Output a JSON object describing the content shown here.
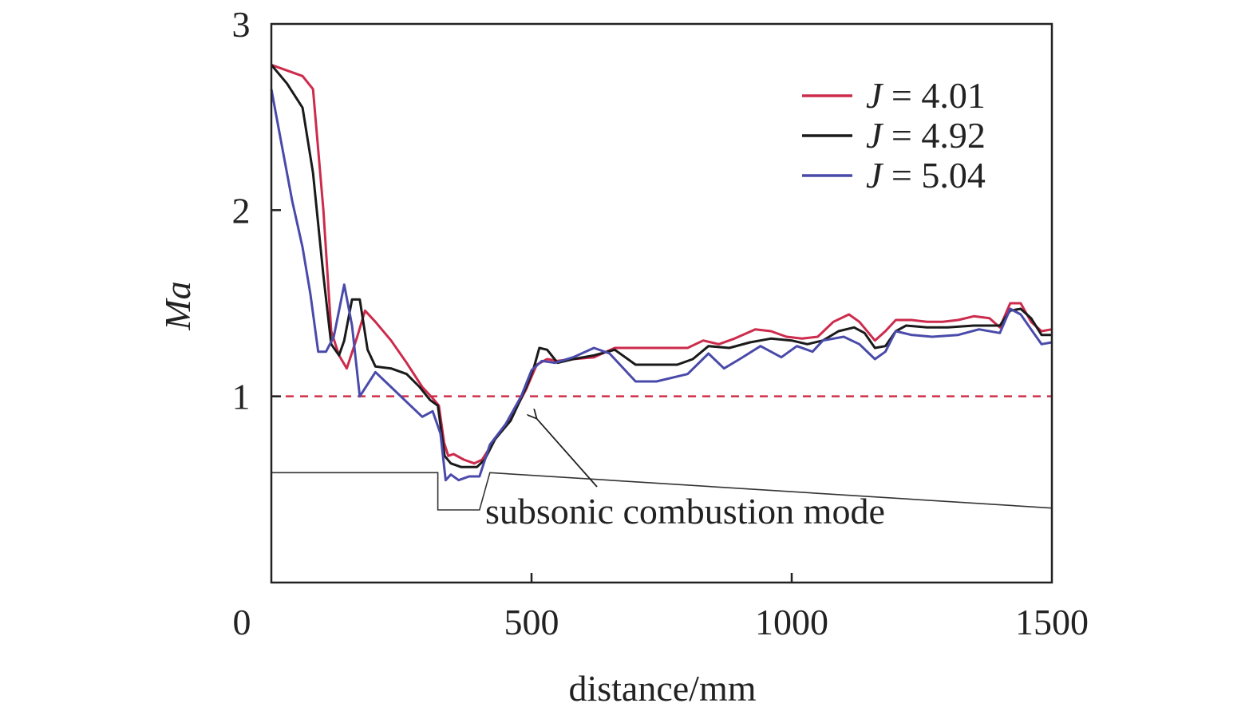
{
  "chart_data": {
    "type": "line",
    "xlabel": "distance/mm",
    "ylabel": "Ma",
    "xlim": [
      0,
      1500
    ],
    "ylim": [
      0,
      3
    ],
    "xticks": [
      "0",
      "500",
      "1000",
      "1500"
    ],
    "xtick_values": [
      0,
      500,
      1000,
      1500
    ],
    "yticks": [
      "1",
      "2",
      "3"
    ],
    "ytick_values": [
      1,
      2,
      3
    ],
    "grid": false,
    "legend_position": "top-right",
    "reference_line": {
      "y": 1.0,
      "style": "dashed",
      "color": "#d0304a"
    },
    "annotation": {
      "text": "subsonic combustion mode",
      "target": [
        510,
        0.88
      ]
    },
    "geometry_profile": {
      "color": "#333333",
      "points": [
        [
          0,
          0.59
        ],
        [
          320,
          0.59
        ],
        [
          320,
          0.39
        ],
        [
          400,
          0.39
        ],
        [
          420,
          0.59
        ],
        [
          1500,
          0.4
        ]
      ]
    },
    "series": [
      {
        "name": "J = 4.01",
        "prefix": "J",
        "suffix": " = 4.01",
        "color": "#cc2b4c",
        "points": [
          [
            0,
            2.78
          ],
          [
            60,
            2.72
          ],
          [
            80,
            2.65
          ],
          [
            100,
            2.0
          ],
          [
            115,
            1.35
          ],
          [
            130,
            1.22
          ],
          [
            145,
            1.15
          ],
          [
            165,
            1.32
          ],
          [
            180,
            1.46
          ],
          [
            200,
            1.4
          ],
          [
            230,
            1.3
          ],
          [
            260,
            1.18
          ],
          [
            290,
            1.05
          ],
          [
            310,
            0.99
          ],
          [
            322,
            0.95
          ],
          [
            332,
            0.75
          ],
          [
            340,
            0.68
          ],
          [
            350,
            0.69
          ],
          [
            370,
            0.66
          ],
          [
            390,
            0.64
          ],
          [
            405,
            0.66
          ],
          [
            430,
            0.77
          ],
          [
            460,
            0.88
          ],
          [
            490,
            1.04
          ],
          [
            510,
            1.17
          ],
          [
            530,
            1.2
          ],
          [
            550,
            1.19
          ],
          [
            580,
            1.2
          ],
          [
            620,
            1.21
          ],
          [
            660,
            1.26
          ],
          [
            700,
            1.26
          ],
          [
            740,
            1.26
          ],
          [
            800,
            1.26
          ],
          [
            830,
            1.3
          ],
          [
            860,
            1.28
          ],
          [
            890,
            1.31
          ],
          [
            930,
            1.36
          ],
          [
            960,
            1.35
          ],
          [
            990,
            1.32
          ],
          [
            1020,
            1.31
          ],
          [
            1050,
            1.32
          ],
          [
            1080,
            1.4
          ],
          [
            1110,
            1.44
          ],
          [
            1130,
            1.4
          ],
          [
            1160,
            1.3
          ],
          [
            1180,
            1.35
          ],
          [
            1200,
            1.41
          ],
          [
            1230,
            1.41
          ],
          [
            1260,
            1.4
          ],
          [
            1290,
            1.4
          ],
          [
            1320,
            1.41
          ],
          [
            1350,
            1.43
          ],
          [
            1380,
            1.42
          ],
          [
            1400,
            1.37
          ],
          [
            1420,
            1.5
          ],
          [
            1440,
            1.5
          ],
          [
            1460,
            1.4
          ],
          [
            1480,
            1.35
          ],
          [
            1500,
            1.36
          ]
        ]
      },
      {
        "name": "J = 4.92",
        "prefix": "J",
        "suffix": " = 4.92",
        "color": "#1a1a1a",
        "points": [
          [
            0,
            2.78
          ],
          [
            30,
            2.68
          ],
          [
            60,
            2.55
          ],
          [
            80,
            2.2
          ],
          [
            100,
            1.65
          ],
          [
            115,
            1.28
          ],
          [
            130,
            1.22
          ],
          [
            140,
            1.3
          ],
          [
            155,
            1.52
          ],
          [
            170,
            1.52
          ],
          [
            185,
            1.25
          ],
          [
            200,
            1.16
          ],
          [
            230,
            1.15
          ],
          [
            260,
            1.12
          ],
          [
            285,
            1.05
          ],
          [
            305,
            0.98
          ],
          [
            320,
            0.95
          ],
          [
            333,
            0.68
          ],
          [
            345,
            0.64
          ],
          [
            365,
            0.62
          ],
          [
            395,
            0.62
          ],
          [
            410,
            0.66
          ],
          [
            430,
            0.77
          ],
          [
            460,
            0.87
          ],
          [
            490,
            1.05
          ],
          [
            505,
            1.16
          ],
          [
            515,
            1.26
          ],
          [
            530,
            1.25
          ],
          [
            550,
            1.18
          ],
          [
            580,
            1.2
          ],
          [
            620,
            1.22
          ],
          [
            660,
            1.25
          ],
          [
            700,
            1.17
          ],
          [
            740,
            1.17
          ],
          [
            780,
            1.17
          ],
          [
            810,
            1.2
          ],
          [
            840,
            1.27
          ],
          [
            880,
            1.26
          ],
          [
            920,
            1.29
          ],
          [
            960,
            1.31
          ],
          [
            1000,
            1.3
          ],
          [
            1030,
            1.28
          ],
          [
            1060,
            1.3
          ],
          [
            1090,
            1.35
          ],
          [
            1120,
            1.37
          ],
          [
            1140,
            1.34
          ],
          [
            1160,
            1.26
          ],
          [
            1180,
            1.27
          ],
          [
            1200,
            1.35
          ],
          [
            1220,
            1.38
          ],
          [
            1260,
            1.37
          ],
          [
            1300,
            1.37
          ],
          [
            1350,
            1.38
          ],
          [
            1400,
            1.38
          ],
          [
            1420,
            1.46
          ],
          [
            1440,
            1.47
          ],
          [
            1460,
            1.42
          ],
          [
            1480,
            1.33
          ],
          [
            1500,
            1.33
          ]
        ]
      },
      {
        "name": "J = 5.04",
        "prefix": "J",
        "suffix": " = 5.04",
        "color": "#4a4aaa",
        "points": [
          [
            0,
            2.65
          ],
          [
            20,
            2.35
          ],
          [
            40,
            2.05
          ],
          [
            60,
            1.8
          ],
          [
            75,
            1.55
          ],
          [
            90,
            1.24
          ],
          [
            105,
            1.24
          ],
          [
            120,
            1.32
          ],
          [
            140,
            1.6
          ],
          [
            155,
            1.38
          ],
          [
            170,
            1.0
          ],
          [
            200,
            1.13
          ],
          [
            230,
            1.05
          ],
          [
            260,
            0.97
          ],
          [
            290,
            0.89
          ],
          [
            310,
            0.92
          ],
          [
            325,
            0.8
          ],
          [
            335,
            0.55
          ],
          [
            345,
            0.58
          ],
          [
            360,
            0.55
          ],
          [
            380,
            0.57
          ],
          [
            400,
            0.57
          ],
          [
            420,
            0.74
          ],
          [
            450,
            0.85
          ],
          [
            480,
            1.0
          ],
          [
            500,
            1.14
          ],
          [
            520,
            1.19
          ],
          [
            545,
            1.18
          ],
          [
            580,
            1.21
          ],
          [
            620,
            1.26
          ],
          [
            650,
            1.23
          ],
          [
            700,
            1.08
          ],
          [
            740,
            1.08
          ],
          [
            800,
            1.12
          ],
          [
            840,
            1.23
          ],
          [
            870,
            1.15
          ],
          [
            900,
            1.2
          ],
          [
            940,
            1.27
          ],
          [
            980,
            1.21
          ],
          [
            1010,
            1.27
          ],
          [
            1040,
            1.24
          ],
          [
            1060,
            1.3
          ],
          [
            1100,
            1.32
          ],
          [
            1130,
            1.28
          ],
          [
            1160,
            1.2
          ],
          [
            1180,
            1.24
          ],
          [
            1200,
            1.35
          ],
          [
            1230,
            1.33
          ],
          [
            1270,
            1.32
          ],
          [
            1320,
            1.33
          ],
          [
            1360,
            1.36
          ],
          [
            1400,
            1.34
          ],
          [
            1420,
            1.47
          ],
          [
            1440,
            1.44
          ],
          [
            1460,
            1.36
          ],
          [
            1480,
            1.28
          ],
          [
            1500,
            1.29
          ]
        ]
      }
    ]
  }
}
